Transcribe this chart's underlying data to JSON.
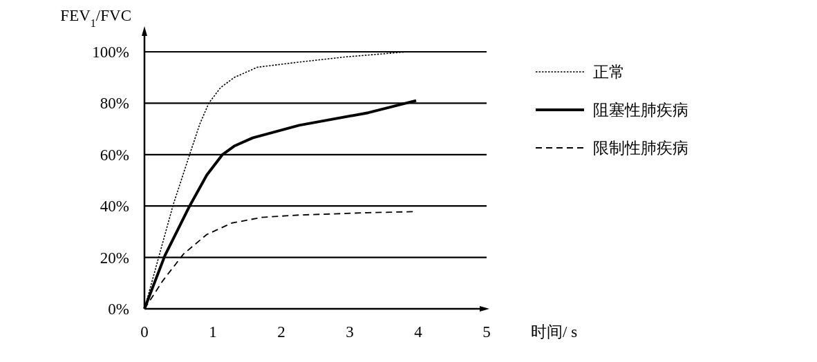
{
  "chart_data": {
    "type": "line",
    "ylabel": "FEV$_{1}$/FVC",
    "xlabel": "时间/ s",
    "xlim": [
      0,
      5
    ],
    "xticks": [
      0,
      1,
      2,
      3,
      4,
      5
    ],
    "ylim": [
      0,
      100
    ],
    "yticks": [
      {
        "value": 0,
        "label": "0%"
      },
      {
        "value": 20,
        "label": "20%"
      },
      {
        "value": 40,
        "label": "40%"
      },
      {
        "value": 60,
        "label": "60%"
      },
      {
        "value": 80,
        "label": "80%"
      },
      {
        "value": 100,
        "label": "100%"
      }
    ],
    "grid": "y",
    "legend": "right",
    "marker": "none",
    "series": [
      {
        "name": "正常",
        "color": "#000000",
        "line_style": "dotted",
        "x": [
          0,
          0.42,
          0.66,
          0.81,
          0.94,
          1.11,
          1.31,
          1.65,
          2.26,
          2.93,
          3.84,
          4.0
        ],
        "values": [
          0,
          40.5,
          60,
          72,
          80,
          86,
          90,
          94,
          96,
          98,
          100,
          100
        ]
      },
      {
        "name": "阻塞性肺疾病",
        "color": "#000000",
        "line_style": "solid",
        "x": [
          0,
          0.3,
          0.66,
          0.91,
          1.14,
          1.31,
          1.58,
          2.26,
          3.27,
          3.97
        ],
        "values": [
          0,
          20.8,
          40,
          52,
          60,
          63.3,
          66.5,
          71.4,
          76.3,
          81
        ]
      },
      {
        "name": "限制性肺疾病",
        "color": "#000000",
        "line_style": "dashed",
        "x": [
          0,
          0.27,
          0.57,
          0.91,
          1.28,
          1.72,
          2.26,
          3.27,
          3.94
        ],
        "values": [
          0,
          11,
          21.3,
          28.9,
          33.4,
          35.6,
          36.5,
          37.4,
          37.8
        ]
      }
    ]
  }
}
